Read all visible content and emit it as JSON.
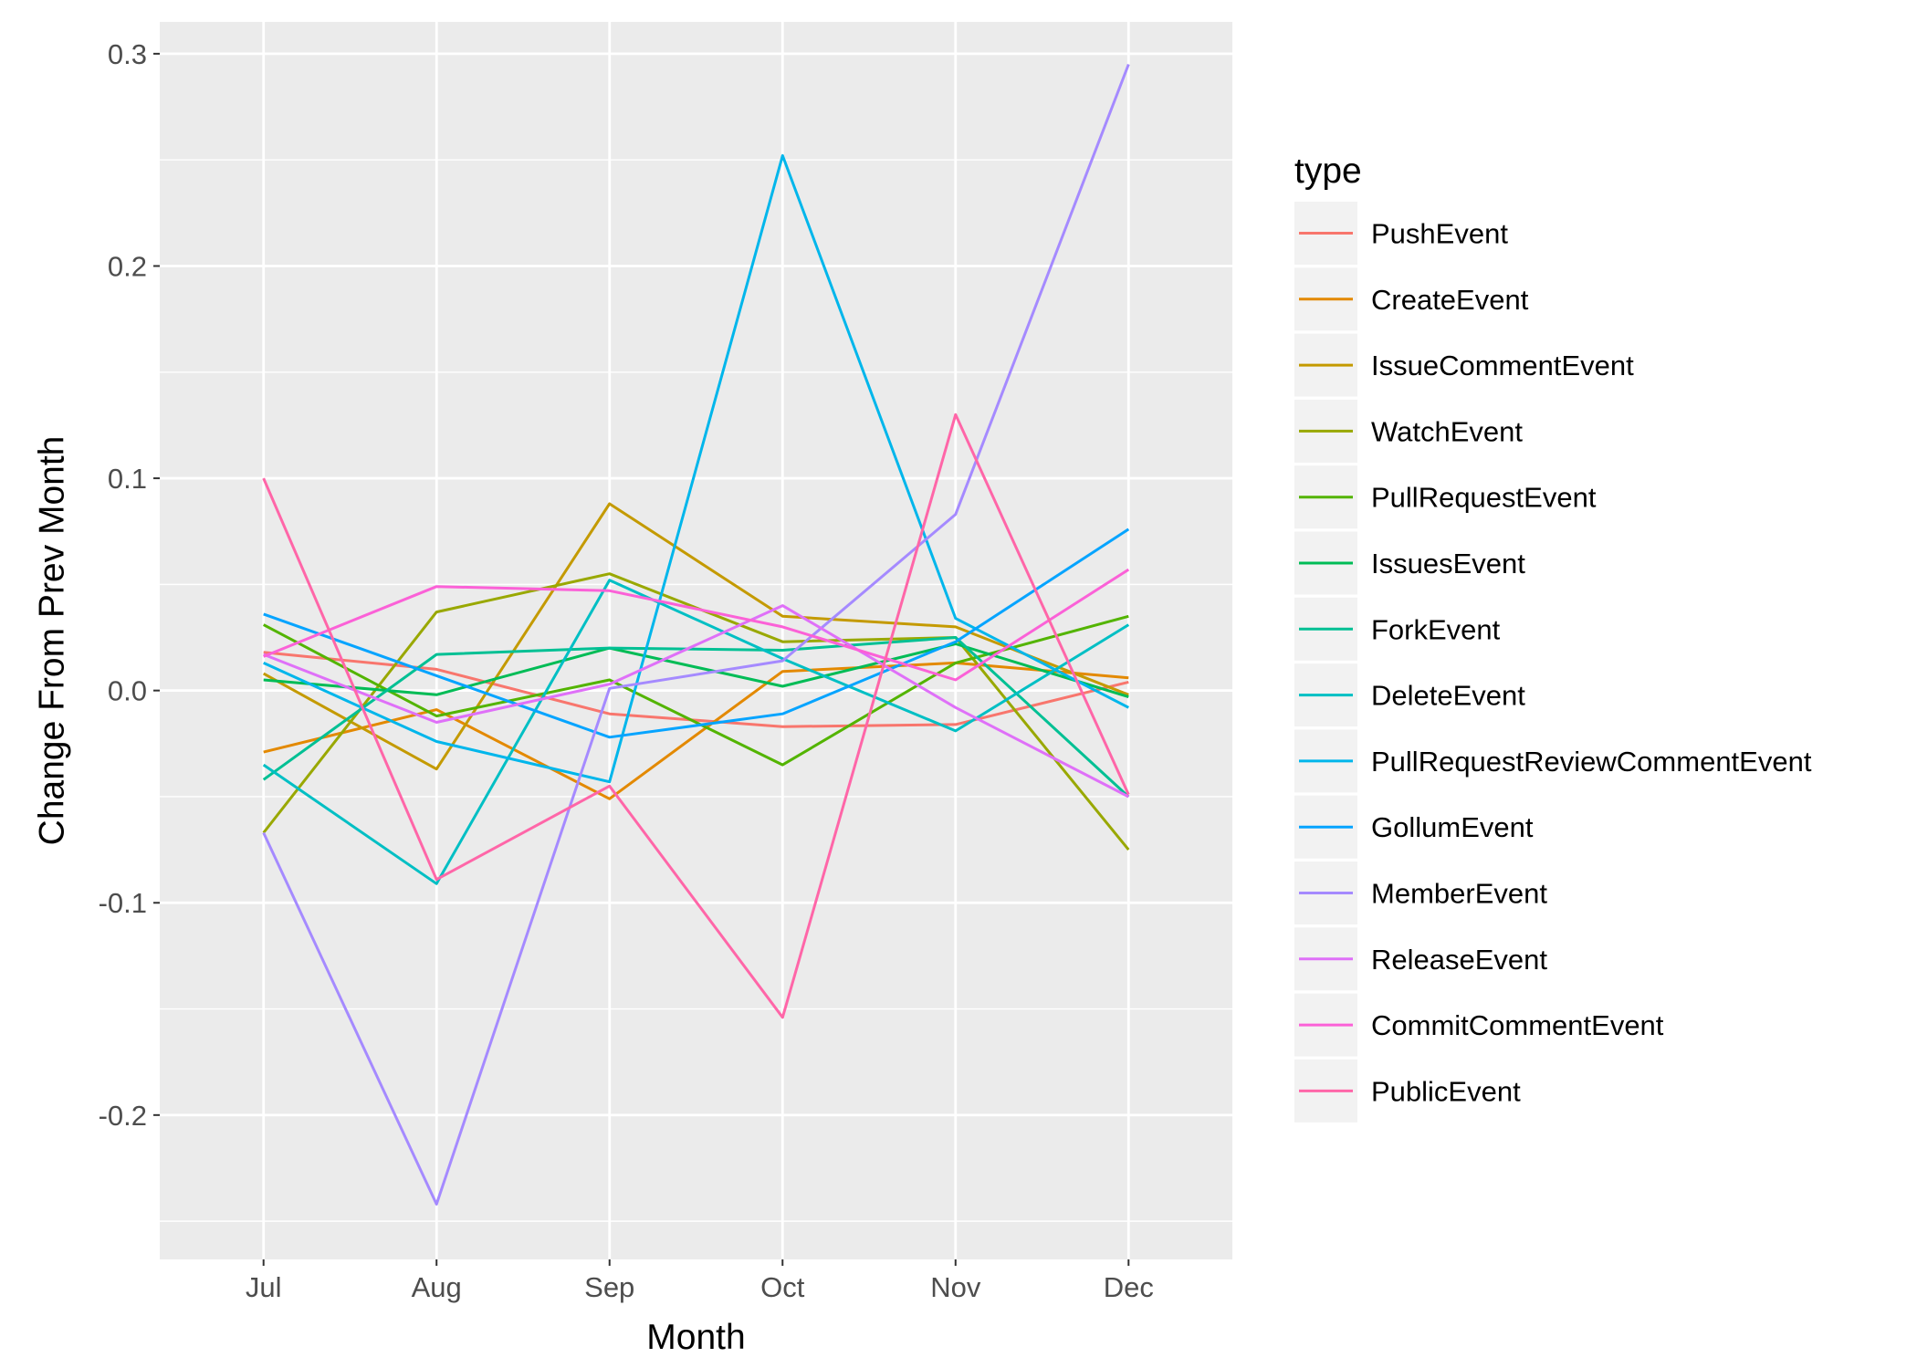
{
  "chart_data": {
    "type": "line",
    "xlabel": "Month",
    "ylabel": "Change From Prev Month",
    "categories": [
      "Jul",
      "Aug",
      "Sep",
      "Oct",
      "Nov",
      "Dec"
    ],
    "yticks": [
      -0.2,
      -0.1,
      0.0,
      0.1,
      0.2,
      0.3
    ],
    "ytick_labels": [
      "-0.2",
      "-0.1",
      "0.0",
      "0.1",
      "0.2",
      "0.3"
    ],
    "ylim": [
      -0.268,
      0.315
    ],
    "grid": true,
    "legend_title": "type",
    "legend_position": "right",
    "series": [
      {
        "name": "PushEvent",
        "color": "#F8766D",
        "values": [
          0.018,
          0.01,
          -0.011,
          -0.017,
          -0.016,
          0.004
        ]
      },
      {
        "name": "CreateEvent",
        "color": "#E38900",
        "values": [
          -0.029,
          -0.009,
          -0.051,
          0.009,
          0.013,
          0.006
        ]
      },
      {
        "name": "IssueCommentEvent",
        "color": "#C49A00",
        "values": [
          0.008,
          -0.037,
          0.088,
          0.035,
          0.03,
          -0.002
        ]
      },
      {
        "name": "WatchEvent",
        "color": "#99A800",
        "values": [
          -0.067,
          0.037,
          0.055,
          0.023,
          0.025,
          -0.075
        ]
      },
      {
        "name": "PullRequestEvent",
        "color": "#53B400",
        "values": [
          0.031,
          -0.012,
          0.005,
          -0.035,
          0.013,
          0.035
        ]
      },
      {
        "name": "IssuesEvent",
        "color": "#00BC56",
        "values": [
          0.005,
          -0.002,
          0.02,
          0.002,
          0.022,
          -0.003
        ]
      },
      {
        "name": "ForkEvent",
        "color": "#00C094",
        "values": [
          -0.042,
          0.017,
          0.02,
          0.019,
          0.025,
          -0.05
        ]
      },
      {
        "name": "DeleteEvent",
        "color": "#00BFC4",
        "values": [
          -0.035,
          -0.091,
          0.052,
          0.015,
          -0.019,
          0.031
        ]
      },
      {
        "name": "PullRequestReviewCommentEvent",
        "color": "#00B6EB",
        "values": [
          0.013,
          -0.024,
          -0.043,
          0.252,
          0.034,
          -0.008
        ]
      },
      {
        "name": "GollumEvent",
        "color": "#06A4FF",
        "values": [
          0.036,
          0.007,
          -0.022,
          -0.011,
          0.023,
          0.076
        ]
      },
      {
        "name": "MemberEvent",
        "color": "#A58AFF",
        "values": [
          -0.067,
          -0.242,
          0.001,
          0.014,
          0.083,
          0.295
        ]
      },
      {
        "name": "ReleaseEvent",
        "color": "#DF70F8",
        "values": [
          0.017,
          -0.015,
          0.003,
          0.04,
          -0.008,
          -0.05
        ]
      },
      {
        "name": "CommitCommentEvent",
        "color": "#FB61D7",
        "values": [
          0.016,
          0.049,
          0.047,
          0.03,
          0.005,
          0.057
        ]
      },
      {
        "name": "PublicEvent",
        "color": "#FF66A8",
        "values": [
          0.1,
          -0.089,
          -0.045,
          -0.154,
          0.13,
          -0.049
        ]
      }
    ]
  }
}
